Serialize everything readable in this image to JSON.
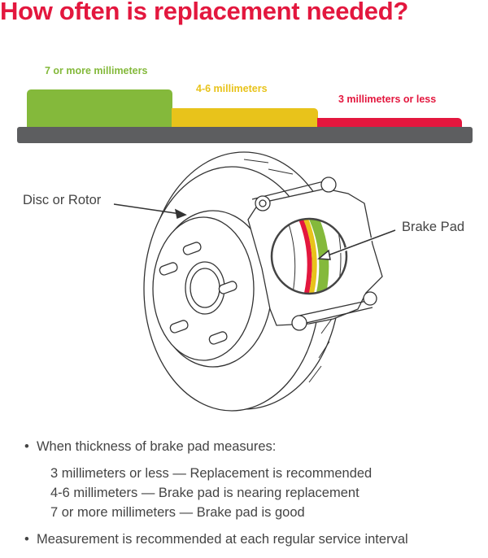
{
  "title": "How often is replacement needed?",
  "levels": [
    {
      "label": "7 or more millimeters",
      "color": "#84b93b"
    },
    {
      "label": "4-6 millimeters",
      "color": "#e8c31b"
    },
    {
      "label": "3 millimeters or less",
      "color": "#e3173e"
    }
  ],
  "diagram": {
    "rotor_label": "Disc or Rotor",
    "pad_label": "Brake Pad"
  },
  "notes": {
    "bullet1": "When thickness of brake pad measures:",
    "items": [
      "3 millimeters or less — Replacement is recommended",
      "4-6 millimeters — Brake pad is nearing replacement",
      "7 or more millimeters — Brake pad is good"
    ],
    "bullet2": "Measurement is recommended at each regular service interval"
  }
}
